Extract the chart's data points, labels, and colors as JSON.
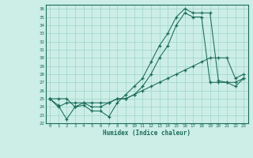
{
  "xlabel": "Humidex (Indice chaleur)",
  "xlim": [
    -0.5,
    23.5
  ],
  "ylim": [
    22.0,
    36.5
  ],
  "yticks": [
    22,
    23,
    24,
    25,
    26,
    27,
    28,
    29,
    30,
    31,
    32,
    33,
    34,
    35,
    36
  ],
  "xticks": [
    0,
    1,
    2,
    3,
    4,
    5,
    6,
    7,
    8,
    9,
    10,
    11,
    12,
    13,
    14,
    15,
    16,
    17,
    18,
    19,
    20,
    21,
    22,
    23
  ],
  "line_color": "#1a6b5a",
  "bg_color": "#cceee6",
  "grid_color": "#9dd4c8",
  "line1_x": [
    0,
    1,
    2,
    3,
    4,
    5,
    6,
    7,
    8,
    9,
    10,
    11,
    12,
    13,
    14,
    15,
    16,
    17,
    18,
    19,
    20,
    21,
    22,
    23
  ],
  "line1_y": [
    25.0,
    24.2,
    22.5,
    24.0,
    24.2,
    23.5,
    23.5,
    22.8,
    24.5,
    25.5,
    26.5,
    27.5,
    29.5,
    31.5,
    33.0,
    35.0,
    36.0,
    35.5,
    35.5,
    35.5,
    27.2,
    27.0,
    26.5,
    27.5
  ],
  "line2_x": [
    0,
    1,
    2,
    3,
    4,
    5,
    6,
    7,
    8,
    9,
    10,
    11,
    12,
    13,
    14,
    15,
    16,
    17,
    18,
    19,
    20,
    21,
    22,
    23
  ],
  "line2_y": [
    25.0,
    25.0,
    25.0,
    24.0,
    24.5,
    24.0,
    24.0,
    24.5,
    25.0,
    25.0,
    25.5,
    26.5,
    28.0,
    30.0,
    31.5,
    34.0,
    35.5,
    35.0,
    35.0,
    27.0,
    27.0,
    27.0,
    27.0,
    27.5
  ],
  "line3_x": [
    0,
    1,
    2,
    3,
    4,
    5,
    6,
    7,
    8,
    9,
    10,
    11,
    12,
    13,
    14,
    15,
    16,
    17,
    18,
    19,
    20,
    21,
    22,
    23
  ],
  "line3_y": [
    25.0,
    24.0,
    24.5,
    24.5,
    24.5,
    24.5,
    24.5,
    24.5,
    25.0,
    25.0,
    25.5,
    26.0,
    26.5,
    27.0,
    27.5,
    28.0,
    28.5,
    29.0,
    29.5,
    30.0,
    30.0,
    30.0,
    27.5,
    28.0
  ]
}
